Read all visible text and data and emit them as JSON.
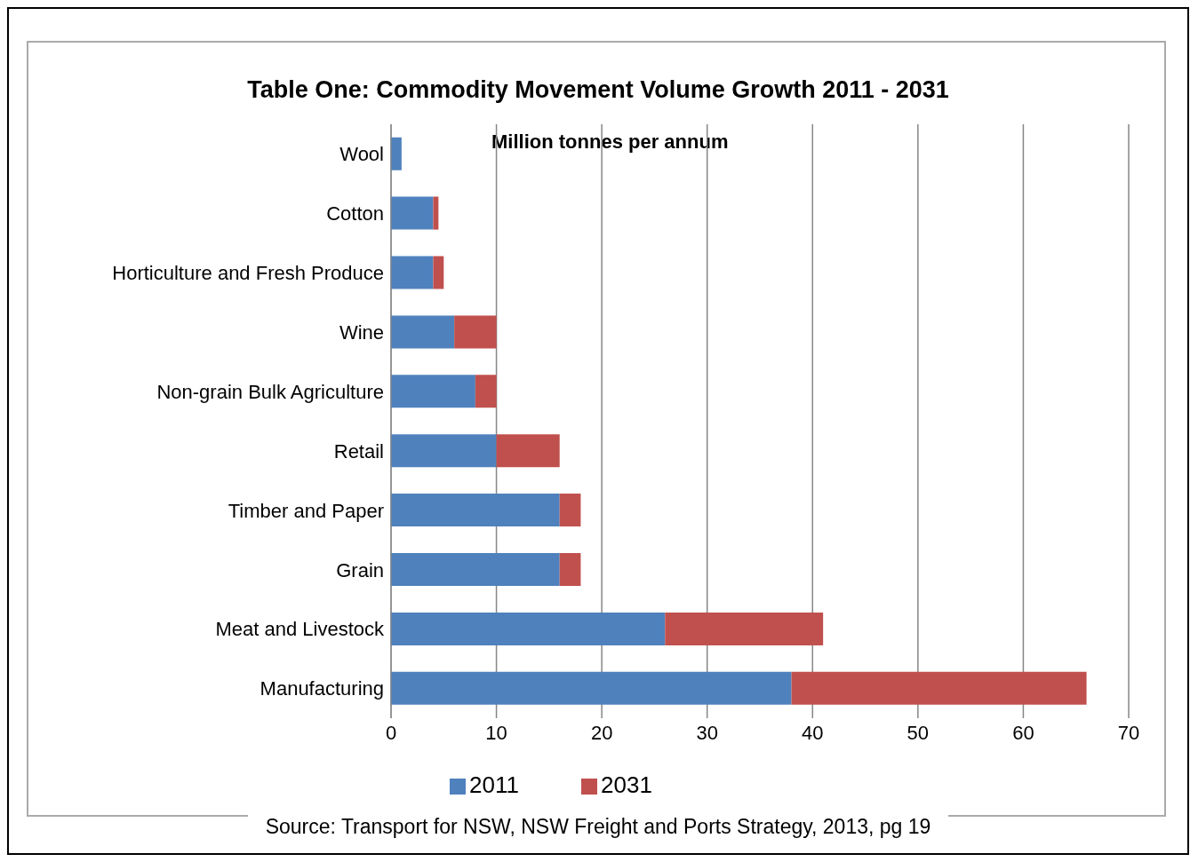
{
  "chart_data": {
    "type": "bar",
    "orientation": "horizontal",
    "stacked": true,
    "title": "Table One: Commodity Movement Volume Growth 2011 - 2031",
    "subtitle": "Million tonnes per annum",
    "categories": [
      "Wool",
      "Cotton",
      "Horticulture and Fresh Produce",
      "Wine",
      "Non-grain Bulk Agriculture",
      "Retail",
      "Timber and Paper",
      "Grain",
      "Meat and Livestock",
      "Manufacturing"
    ],
    "series": [
      {
        "name": "2011",
        "color": "#4f81bd",
        "values": [
          1,
          4,
          4,
          6,
          8,
          10,
          16,
          16,
          26,
          38
        ]
      },
      {
        "name": "2031",
        "color": "#c0504d",
        "values": [
          0,
          0.5,
          1,
          4,
          2,
          6,
          2,
          2,
          15,
          28
        ]
      }
    ],
    "xlim": [
      0,
      70
    ],
    "xticks": [
      0,
      10,
      20,
      30,
      40,
      50,
      60,
      70
    ],
    "grid": "x",
    "legend": "bottom",
    "annotations": [
      "Source: Transport for NSW, NSW Freight and Ports Strategy, 2013, pg 19"
    ]
  }
}
